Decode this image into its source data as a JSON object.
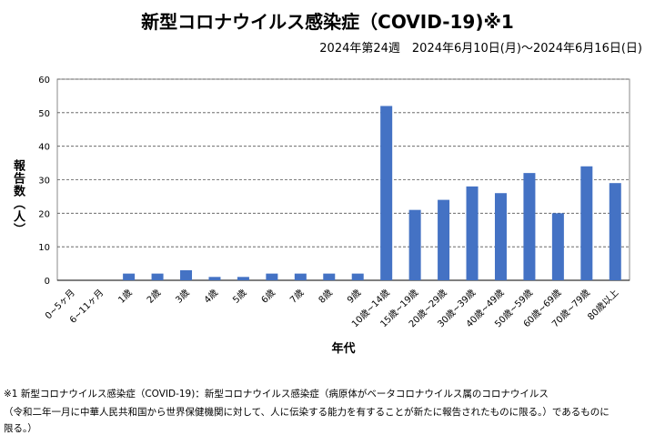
{
  "chart_data": {
    "type": "bar",
    "title": "新型コロナウイルス感染症（COVID-19)※1",
    "subtitle": "2024年第24週　2024年6月10日(月)～2024年6月16日(日)",
    "xlabel": "年代",
    "ylabel": "報告数（人）",
    "ylim": [
      0,
      60
    ],
    "yticks": [
      "0",
      "10",
      "20",
      "30",
      "40",
      "50",
      "60"
    ],
    "grid": true,
    "categories": [
      "0~5ヶ月",
      "6~11ヶ月",
      "1歳",
      "2歳",
      "3歳",
      "4歳",
      "5歳",
      "6歳",
      "7歳",
      "8歳",
      "9歳",
      "10歳~14歳",
      "15歳~19歳",
      "20歳~29歳",
      "30歳~39歳",
      "40歳~49歳",
      "50歳~59歳",
      "60歳~69歳",
      "70歳~79歳",
      "80歳以上"
    ],
    "values": [
      0,
      0,
      2,
      2,
      3,
      1,
      1,
      2,
      2,
      2,
      2,
      52,
      21,
      24,
      28,
      26,
      32,
      20,
      34,
      29
    ],
    "bar_color": "#4472C4"
  },
  "notes": [
    "※1 新型コロナウイルス感染症（COVID-19)：新型コロナウイルス感染症（病原体がベータコロナウイルス属のコロナウイルス",
    "（令和二年一月に中華人民共和国から世界保健機関に対して、人に伝染する能力を有することが新たに報告されたものに限る。）であるものに",
    "限る。）"
  ]
}
